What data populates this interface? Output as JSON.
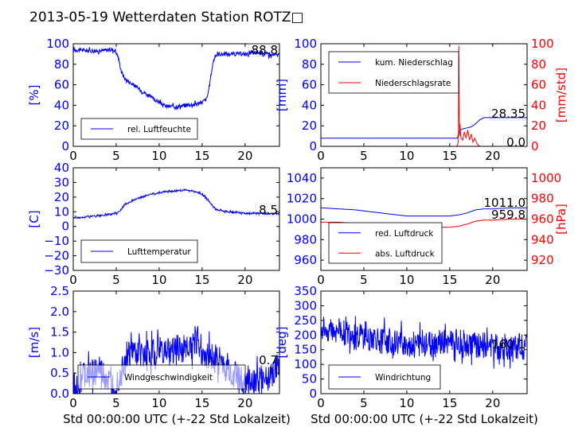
{
  "title": "2013-05-19 Wetterdaten Station ROTZ□",
  "x_tick_labels": [
    "0",
    "5",
    "10",
    "15",
    "20"
  ],
  "xlabel": "Std 00:00:00 UTC (+-22 Std Lokalzeit)",
  "colors": {
    "primary": "#0000ff",
    "secondary": "#ff0000",
    "axis": "#000000"
  },
  "chart_data": [
    {
      "type": "line",
      "ylabel": "[%]",
      "ylim": [
        0,
        100
      ],
      "yticks": [
        "0",
        "20",
        "40",
        "60",
        "80",
        "100"
      ],
      "xlim": [
        0,
        24
      ],
      "grid": false,
      "legend_position": "bottom-left",
      "annotation": "88.8",
      "series": [
        {
          "name": "rel. Luftfeuchte",
          "axis": "left",
          "color": "#0000ff",
          "x": [
            0,
            1,
            2,
            3,
            4,
            4.8,
            5.2,
            5.6,
            6,
            6.5,
            7,
            8,
            9,
            10,
            10.5,
            11,
            12,
            13,
            14,
            15,
            15.5,
            15.8,
            16,
            16.3,
            16.6,
            17,
            18,
            19,
            20,
            21,
            22,
            23,
            24
          ],
          "y": [
            94,
            94,
            93,
            93,
            94,
            94,
            88,
            73,
            66,
            63,
            60,
            54,
            48,
            43,
            40,
            39,
            39,
            40,
            41,
            43,
            46,
            55,
            68,
            83,
            89,
            90,
            90,
            90,
            90,
            91,
            91,
            89,
            89
          ],
          "noise": 2
        }
      ]
    },
    {
      "type": "line",
      "ylabel": "[mm]",
      "ylim": [
        0,
        100
      ],
      "yticks": [
        "0",
        "20",
        "40",
        "60",
        "80",
        "100"
      ],
      "y2label": "[mm/std]",
      "y2lim": [
        0,
        100
      ],
      "y2ticks": [
        "0",
        "20",
        "40",
        "60",
        "80",
        "100"
      ],
      "xlim": [
        0,
        24
      ],
      "grid": false,
      "legend_position": "top-left",
      "annotation": "28.35",
      "annotation2": "0.0",
      "series": [
        {
          "name": "kum. Niederschlag",
          "axis": "left",
          "color": "#0000ff",
          "x": [
            0,
            5,
            10,
            15,
            15.9,
            16,
            16.2,
            16.5,
            17,
            17.5,
            18,
            18.5,
            19,
            20,
            22,
            24
          ],
          "y": [
            8,
            8,
            8,
            8,
            8,
            12,
            16,
            17,
            18,
            19,
            22,
            26,
            28,
            28,
            28,
            28
          ]
        },
        {
          "name": "Niederschlagsrate",
          "axis": "right",
          "color": "#ff0000",
          "x": [
            0,
            15.8,
            15.9,
            16.0,
            16.05,
            16.1,
            16.15,
            16.2,
            16.3,
            16.5,
            16.7,
            16.9,
            17.1,
            17.3,
            17.5,
            17.7,
            17.9,
            18.2,
            18.5,
            19,
            24
          ],
          "y": [
            0,
            0,
            1,
            5,
            98,
            40,
            10,
            22,
            8,
            6,
            14,
            8,
            16,
            6,
            12,
            4,
            8,
            2,
            0,
            0,
            0
          ]
        }
      ]
    },
    {
      "type": "line",
      "ylabel": "[C]",
      "ylim": [
        -30,
        40
      ],
      "yticks": [
        "−30",
        "−20",
        "−10",
        "0",
        "10",
        "20",
        "30",
        "40"
      ],
      "xlim": [
        0,
        24
      ],
      "grid": false,
      "legend_position": "bottom-left",
      "annotation": "8.5",
      "series": [
        {
          "name": "Lufttemperatur",
          "axis": "left",
          "color": "#0000ff",
          "x": [
            0,
            1,
            2,
            3,
            4,
            5,
            5.5,
            6,
            7,
            8,
            9,
            10,
            11,
            12,
            13,
            14,
            15,
            15.5,
            16,
            16.5,
            17,
            18,
            19,
            20,
            21,
            22,
            23,
            24
          ],
          "y": [
            6,
            6,
            7,
            7,
            8,
            9,
            11,
            15,
            18,
            20,
            22,
            23,
            24,
            24,
            25,
            24,
            22,
            19,
            16,
            12,
            11,
            10,
            9.5,
            9,
            9,
            8.8,
            8.6,
            8.5
          ],
          "noise": 0.6
        }
      ]
    },
    {
      "type": "line",
      "ylabel": "",
      "ylim": [
        950,
        1050
      ],
      "yticks": [
        "960",
        "980",
        "1000",
        "1020",
        "1040"
      ],
      "y2label": "[hPa]",
      "y2lim": [
        910,
        1010
      ],
      "y2ticks": [
        "920",
        "940",
        "960",
        "980",
        "1000"
      ],
      "xlim": [
        0,
        24
      ],
      "grid": false,
      "legend_position": "bottom-left",
      "annotation": "1011.0",
      "annotation2": "959.8",
      "series": [
        {
          "name": "red. Luftdruck",
          "axis": "left",
          "color": "#0000ff",
          "x": [
            0,
            2,
            4,
            6,
            8,
            10,
            12,
            14,
            15,
            16,
            17,
            18,
            19,
            20,
            22,
            24
          ],
          "y": [
            1011,
            1010,
            1009,
            1007,
            1005,
            1003,
            1003,
            1003,
            1003,
            1004,
            1006,
            1009,
            1010,
            1010,
            1011,
            1011
          ]
        },
        {
          "name": "abs. Luftdruck",
          "axis": "right",
          "color": "#ff0000",
          "x": [
            0,
            2,
            4,
            6,
            8,
            10,
            12,
            14,
            15,
            16,
            17,
            18,
            19,
            20,
            22,
            24
          ],
          "y": [
            957,
            957,
            956,
            955,
            954,
            953,
            952,
            952,
            952,
            953,
            955,
            958,
            959,
            959,
            960,
            960
          ]
        }
      ]
    },
    {
      "type": "line",
      "ylabel": "[m/s]",
      "ylim": [
        0,
        2.5
      ],
      "yticks": [
        "0.0",
        "0.5",
        "1.0",
        "1.5",
        "2.0",
        "2.5"
      ],
      "xlim": [
        0,
        24
      ],
      "grid": false,
      "legend_position": "bottom-center",
      "annotation": "0.7",
      "series": [
        {
          "name": "Windgeschwindigkeit",
          "axis": "left",
          "color": "#0000ff",
          "x": [
            0,
            0.5,
            1,
            2,
            3,
            4,
            4.5,
            5,
            5.5,
            6,
            7,
            8,
            9,
            10,
            11,
            12,
            13,
            14,
            14.5,
            15,
            16,
            17,
            18,
            19,
            20,
            21,
            22,
            23,
            24
          ],
          "y": [
            0.2,
            0.15,
            0.4,
            0.5,
            0.55,
            0.3,
            0.15,
            0.2,
            0.5,
            0.9,
            1.0,
            0.95,
            1.0,
            1.05,
            1.0,
            1.1,
            1.1,
            1.15,
            1.4,
            1.0,
            0.9,
            0.8,
            0.6,
            0.4,
            0.3,
            0.3,
            0.35,
            0.45,
            0.6
          ],
          "noise": 0.35
        }
      ]
    },
    {
      "type": "line",
      "ylabel": "[deg]",
      "ylim": [
        0,
        350
      ],
      "yticks": [
        "0",
        "50",
        "100",
        "150",
        "200",
        "250",
        "300",
        "350"
      ],
      "xlim": [
        0,
        24
      ],
      "grid": false,
      "legend_position": "bottom-left",
      "annotation": "160.1",
      "series": [
        {
          "name": "Windrichtung",
          "axis": "left",
          "color": "#0000ff",
          "x": [
            0,
            1,
            2,
            3,
            4,
            5,
            6,
            7,
            8,
            9,
            10,
            11,
            12,
            13,
            14,
            15,
            16,
            17,
            18,
            19,
            20,
            21,
            22,
            23,
            24
          ],
          "y": [
            220,
            220,
            220,
            200,
            210,
            190,
            190,
            180,
            180,
            170,
            170,
            165,
            165,
            170,
            175,
            180,
            180,
            170,
            165,
            165,
            160,
            160,
            160,
            160,
            160
          ],
          "noise": 45
        }
      ]
    }
  ]
}
